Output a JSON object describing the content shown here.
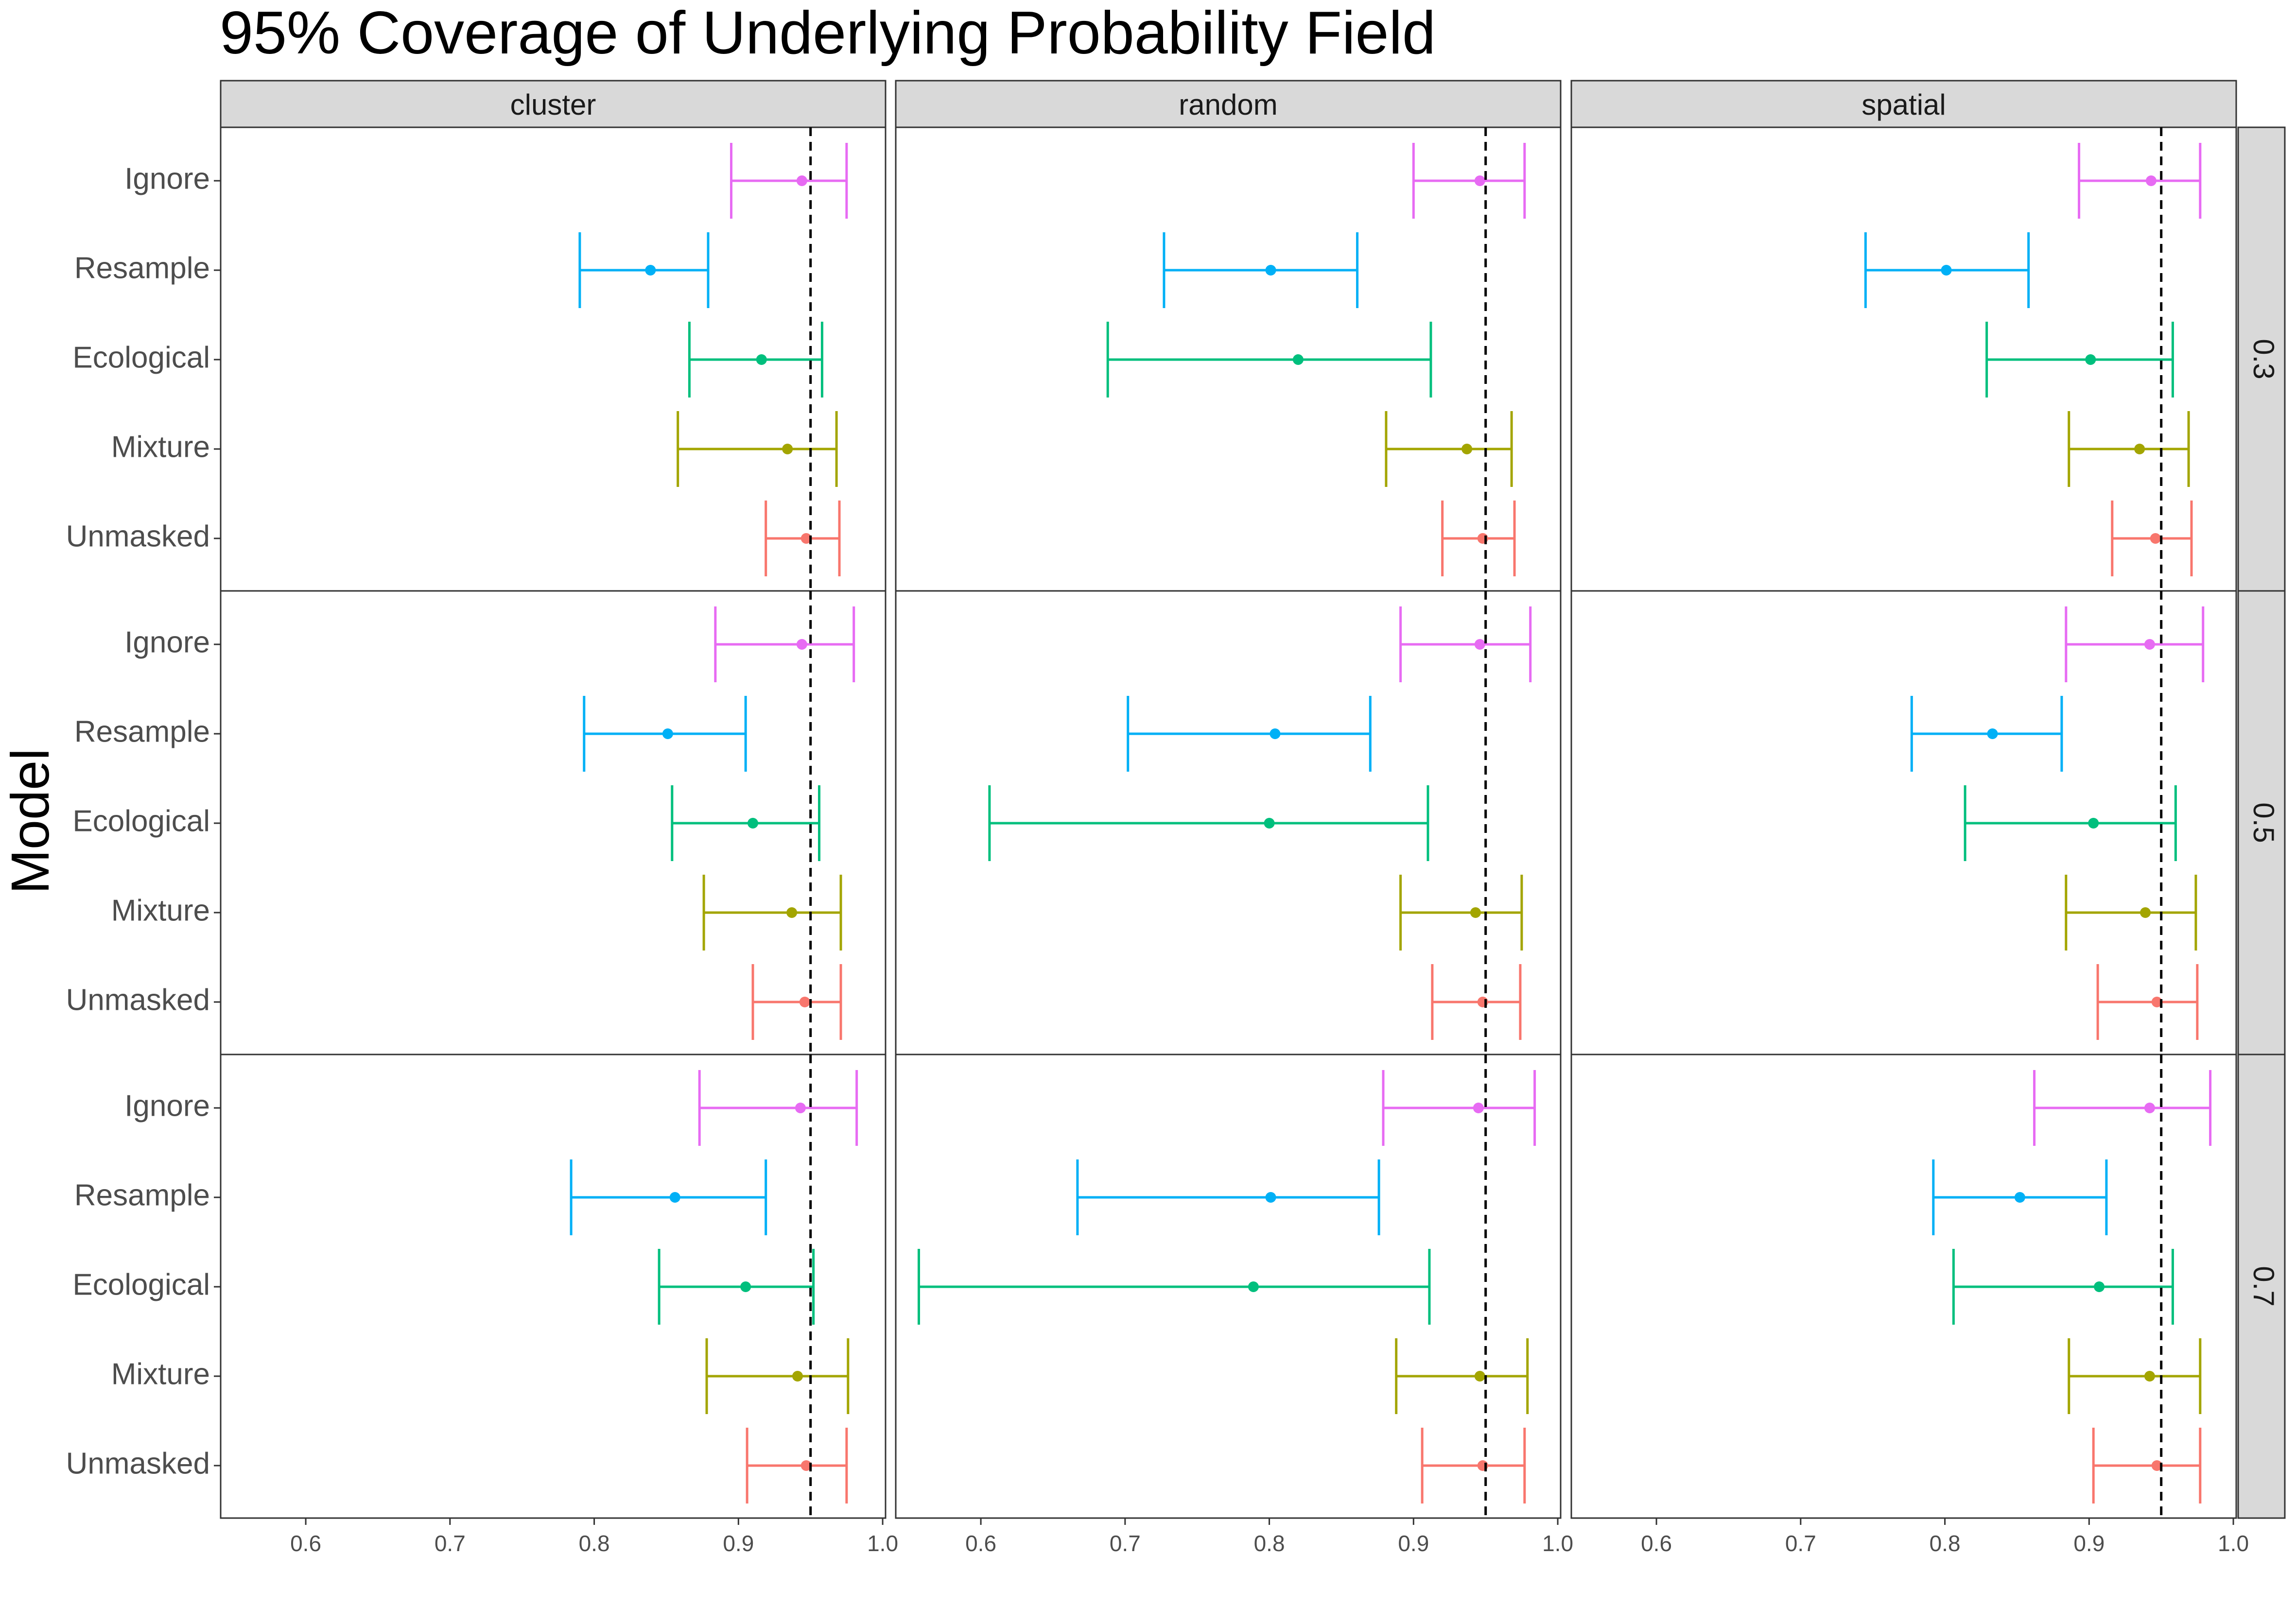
{
  "chart_data": {
    "type": "errorbar",
    "title": "95% Coverage of Underlying Probability Field",
    "ylabel": "Model",
    "xlabel": "",
    "xlim": [
      0.541,
      1.002
    ],
    "x_ticks": [
      "0.6",
      "0.7",
      "0.8",
      "0.9",
      "1.0"
    ],
    "reference_line": 0.95,
    "columns": [
      "cluster",
      "random",
      "spatial"
    ],
    "rows": [
      "0.3",
      "0.5",
      "0.7"
    ],
    "models": [
      "Ignore",
      "Resample",
      "Ecological",
      "Mixture",
      "Unmasked"
    ],
    "colors": {
      "Ignore": "#e76bf3",
      "Resample": "#00b0f6",
      "Ecological": "#00bf7d",
      "Mixture": "#a3a500",
      "Unmasked": "#f8766d"
    },
    "panels": [
      {
        "column": "cluster",
        "row": "0.3",
        "series": [
          {
            "model": "Ignore",
            "estimate": 0.944,
            "lower": 0.895,
            "upper": 0.975
          },
          {
            "model": "Resample",
            "estimate": 0.839,
            "lower": 0.79,
            "upper": 0.879
          },
          {
            "model": "Ecological",
            "estimate": 0.916,
            "lower": 0.866,
            "upper": 0.958
          },
          {
            "model": "Mixture",
            "estimate": 0.934,
            "lower": 0.858,
            "upper": 0.968
          },
          {
            "model": "Unmasked",
            "estimate": 0.947,
            "lower": 0.919,
            "upper": 0.97
          }
        ]
      },
      {
        "column": "random",
        "row": "0.3",
        "series": [
          {
            "model": "Ignore",
            "estimate": 0.946,
            "lower": 0.9,
            "upper": 0.977
          },
          {
            "model": "Resample",
            "estimate": 0.801,
            "lower": 0.727,
            "upper": 0.861
          },
          {
            "model": "Ecological",
            "estimate": 0.82,
            "lower": 0.688,
            "upper": 0.912
          },
          {
            "model": "Mixture",
            "estimate": 0.937,
            "lower": 0.881,
            "upper": 0.968
          },
          {
            "model": "Unmasked",
            "estimate": 0.948,
            "lower": 0.92,
            "upper": 0.97
          }
        ]
      },
      {
        "column": "spatial",
        "row": "0.3",
        "series": [
          {
            "model": "Ignore",
            "estimate": 0.943,
            "lower": 0.893,
            "upper": 0.977
          },
          {
            "model": "Resample",
            "estimate": 0.801,
            "lower": 0.745,
            "upper": 0.858
          },
          {
            "model": "Ecological",
            "estimate": 0.901,
            "lower": 0.829,
            "upper": 0.958
          },
          {
            "model": "Mixture",
            "estimate": 0.935,
            "lower": 0.886,
            "upper": 0.969
          },
          {
            "model": "Unmasked",
            "estimate": 0.946,
            "lower": 0.916,
            "upper": 0.971
          }
        ]
      },
      {
        "column": "cluster",
        "row": "0.5",
        "series": [
          {
            "model": "Ignore",
            "estimate": 0.944,
            "lower": 0.884,
            "upper": 0.98
          },
          {
            "model": "Resample",
            "estimate": 0.851,
            "lower": 0.793,
            "upper": 0.905
          },
          {
            "model": "Ecological",
            "estimate": 0.91,
            "lower": 0.854,
            "upper": 0.956
          },
          {
            "model": "Mixture",
            "estimate": 0.937,
            "lower": 0.876,
            "upper": 0.971
          },
          {
            "model": "Unmasked",
            "estimate": 0.946,
            "lower": 0.91,
            "upper": 0.971
          }
        ]
      },
      {
        "column": "random",
        "row": "0.5",
        "series": [
          {
            "model": "Ignore",
            "estimate": 0.946,
            "lower": 0.891,
            "upper": 0.981
          },
          {
            "model": "Resample",
            "estimate": 0.804,
            "lower": 0.702,
            "upper": 0.87
          },
          {
            "model": "Ecological",
            "estimate": 0.8,
            "lower": 0.606,
            "upper": 0.91
          },
          {
            "model": "Mixture",
            "estimate": 0.943,
            "lower": 0.891,
            "upper": 0.975
          },
          {
            "model": "Unmasked",
            "estimate": 0.948,
            "lower": 0.913,
            "upper": 0.974
          }
        ]
      },
      {
        "column": "spatial",
        "row": "0.5",
        "series": [
          {
            "model": "Ignore",
            "estimate": 0.942,
            "lower": 0.884,
            "upper": 0.979
          },
          {
            "model": "Resample",
            "estimate": 0.833,
            "lower": 0.777,
            "upper": 0.881
          },
          {
            "model": "Ecological",
            "estimate": 0.903,
            "lower": 0.814,
            "upper": 0.96
          },
          {
            "model": "Mixture",
            "estimate": 0.939,
            "lower": 0.884,
            "upper": 0.974
          },
          {
            "model": "Unmasked",
            "estimate": 0.947,
            "lower": 0.906,
            "upper": 0.975
          }
        ]
      },
      {
        "column": "cluster",
        "row": "0.7",
        "series": [
          {
            "model": "Ignore",
            "estimate": 0.943,
            "lower": 0.873,
            "upper": 0.982
          },
          {
            "model": "Resample",
            "estimate": 0.856,
            "lower": 0.784,
            "upper": 0.919
          },
          {
            "model": "Ecological",
            "estimate": 0.905,
            "lower": 0.845,
            "upper": 0.952
          },
          {
            "model": "Mixture",
            "estimate": 0.941,
            "lower": 0.878,
            "upper": 0.976
          },
          {
            "model": "Unmasked",
            "estimate": 0.947,
            "lower": 0.906,
            "upper": 0.975
          }
        ]
      },
      {
        "column": "random",
        "row": "0.7",
        "series": [
          {
            "model": "Ignore",
            "estimate": 0.945,
            "lower": 0.879,
            "upper": 0.984
          },
          {
            "model": "Resample",
            "estimate": 0.801,
            "lower": 0.667,
            "upper": 0.876
          },
          {
            "model": "Ecological",
            "estimate": 0.789,
            "lower": 0.557,
            "upper": 0.911
          },
          {
            "model": "Mixture",
            "estimate": 0.946,
            "lower": 0.888,
            "upper": 0.979
          },
          {
            "model": "Unmasked",
            "estimate": 0.948,
            "lower": 0.906,
            "upper": 0.977
          }
        ]
      },
      {
        "column": "spatial",
        "row": "0.7",
        "series": [
          {
            "model": "Ignore",
            "estimate": 0.942,
            "lower": 0.862,
            "upper": 0.984
          },
          {
            "model": "Resample",
            "estimate": 0.852,
            "lower": 0.792,
            "upper": 0.912
          },
          {
            "model": "Ecological",
            "estimate": 0.907,
            "lower": 0.806,
            "upper": 0.958
          },
          {
            "model": "Mixture",
            "estimate": 0.942,
            "lower": 0.886,
            "upper": 0.977
          },
          {
            "model": "Unmasked",
            "estimate": 0.947,
            "lower": 0.903,
            "upper": 0.977
          }
        ]
      }
    ]
  }
}
